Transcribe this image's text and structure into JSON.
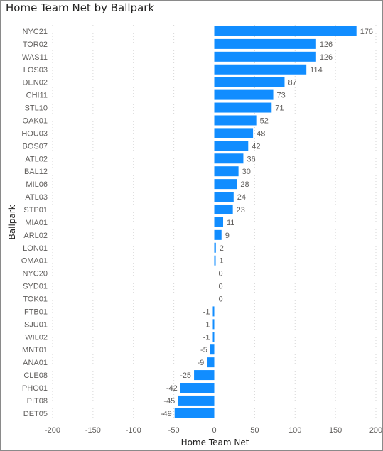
{
  "chart_data": {
    "type": "bar",
    "orientation": "horizontal",
    "title": "Home Team Net by Ballpark",
    "xlabel": "Home Team Net",
    "ylabel": "Ballpark",
    "xlim": [
      -200,
      200
    ],
    "xticks": [
      -200,
      -150,
      -100,
      -50,
      0,
      50,
      100,
      150,
      200
    ],
    "grid": "vertical dotted",
    "bar_color": "#118DFF",
    "categories": [
      "NYC21",
      "TOR02",
      "WAS11",
      "LOS03",
      "DEN02",
      "CHI11",
      "STL10",
      "OAK01",
      "HOU03",
      "BOS07",
      "ATL02",
      "BAL12",
      "MIL06",
      "ATL03",
      "STP01",
      "MIA01",
      "ARL02",
      "LON01",
      "OMA01",
      "NYC20",
      "SYD01",
      "TOK01",
      "FTB01",
      "SJU01",
      "WIL02",
      "MNT01",
      "ANA01",
      "CLE08",
      "PHO01",
      "PIT08",
      "DET05"
    ],
    "values": [
      176,
      126,
      126,
      114,
      87,
      73,
      71,
      52,
      48,
      42,
      36,
      30,
      28,
      24,
      23,
      11,
      9,
      2,
      1,
      0,
      0,
      0,
      -1,
      -1,
      -1,
      -5,
      -9,
      -25,
      -42,
      -45,
      -49
    ]
  }
}
